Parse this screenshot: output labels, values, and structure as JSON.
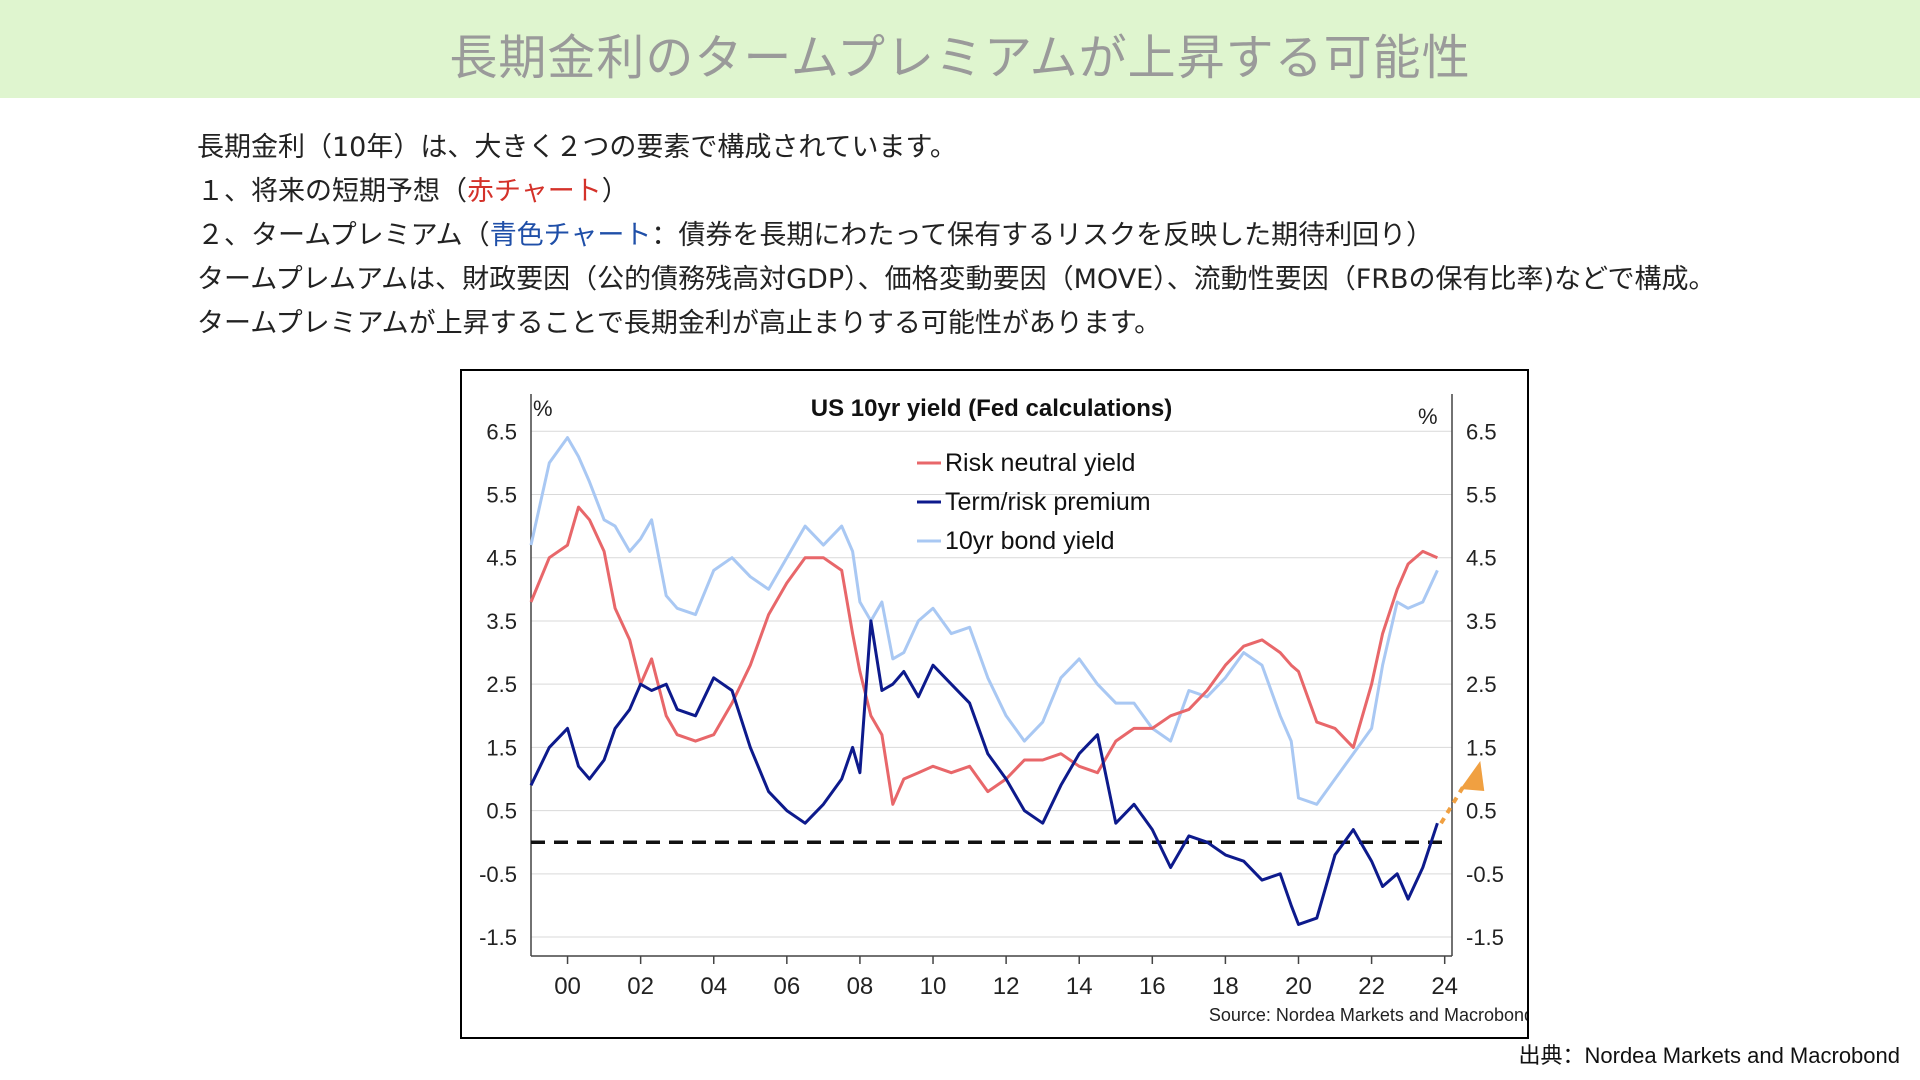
{
  "header": {
    "title": "長期金利のタームプレミアムが上昇する可能性"
  },
  "body": {
    "line1": "長期金利（10年）は、大きく２つの要素で構成されています。",
    "line2_prefix": "１、将来の短期予想（",
    "line2_highlight": "赤チャート",
    "line2_suffix": "）",
    "line3_prefix": "２、タームプレミアム（",
    "line3_highlight": "青色チャート",
    "line3_suffix": "：債券を長期にわたって保有するリスクを反映した期待利回り）",
    "line4": "タームプレムアムは、財政要因（公的債務残高対GDP）、価格変動要因（MOVE）、流動性要因（FRBの保有比率)などで構成。",
    "line5": "タームプレミアムが上昇することで長期金利が高止まりする可能性があります。"
  },
  "footer": {
    "source": "出典：Nordea Markets and Macrobond"
  },
  "colors": {
    "header_bg": "#dff5cf",
    "red_text": "#d4322a",
    "blue_text": "#1f4fa8",
    "risk_neutral": "#e8676a",
    "term_premium": "#0d1a8c",
    "bond_yield": "#a9c8f3",
    "arrow": "#f0a041"
  },
  "chart_data": {
    "type": "line",
    "title": "US 10yr yield (Fed calculations)",
    "source": "Source: Nordea Markets and Macrobond",
    "left_unit": "%",
    "right_unit": "%",
    "ylim": [
      -1.8,
      6.9
    ],
    "yticks": [
      6.5,
      5.5,
      4.5,
      3.5,
      2.5,
      1.5,
      0.5,
      -0.5,
      -1.5
    ],
    "ytick_labels": [
      "6.5",
      "5.5",
      "4.5",
      "3.5",
      "2.5",
      "1.5",
      "0.5",
      "-0.5",
      "-1.5"
    ],
    "xlim": [
      1999.0,
      2024.2
    ],
    "xticks": [
      2000,
      2002,
      2004,
      2006,
      2008,
      2010,
      2012,
      2014,
      2016,
      2018,
      2020,
      2022,
      2024
    ],
    "xtick_labels": [
      "00",
      "02",
      "04",
      "06",
      "08",
      "10",
      "12",
      "14",
      "16",
      "18",
      "20",
      "22",
      "24"
    ],
    "zero_line": 0,
    "legend_position": "top-center",
    "series": [
      {
        "name": "Risk neutral yield",
        "x": [
          1999.0,
          1999.5,
          2000.0,
          2000.3,
          2000.6,
          2001.0,
          2001.3,
          2001.7,
          2002.0,
          2002.3,
          2002.7,
          2003.0,
          2003.5,
          2004.0,
          2004.5,
          2005.0,
          2005.5,
          2006.0,
          2006.5,
          2007.0,
          2007.5,
          2007.8,
          2008.0,
          2008.3,
          2008.6,
          2008.9,
          2009.2,
          2009.6,
          2010.0,
          2010.5,
          2011.0,
          2011.5,
          2012.0,
          2012.5,
          2013.0,
          2013.5,
          2014.0,
          2014.5,
          2015.0,
          2015.5,
          2016.0,
          2016.5,
          2017.0,
          2017.5,
          2018.0,
          2018.5,
          2019.0,
          2019.5,
          2019.8,
          2020.0,
          2020.5,
          2021.0,
          2021.5,
          2022.0,
          2022.3,
          2022.7,
          2023.0,
          2023.4,
          2023.8
        ],
        "values": [
          3.8,
          4.5,
          4.7,
          5.3,
          5.1,
          4.6,
          3.7,
          3.2,
          2.5,
          2.9,
          2.0,
          1.7,
          1.6,
          1.7,
          2.2,
          2.8,
          3.6,
          4.1,
          4.5,
          4.5,
          4.3,
          3.3,
          2.7,
          2.0,
          1.7,
          0.6,
          1.0,
          1.1,
          1.2,
          1.1,
          1.2,
          0.8,
          1.0,
          1.3,
          1.3,
          1.4,
          1.2,
          1.1,
          1.6,
          1.8,
          1.8,
          2.0,
          2.1,
          2.4,
          2.8,
          3.1,
          3.2,
          3.0,
          2.8,
          2.7,
          1.9,
          1.8,
          1.5,
          2.5,
          3.3,
          4.0,
          4.4,
          4.6,
          4.5
        ]
      },
      {
        "name": "Term/risk premium",
        "x": [
          1999.0,
          1999.5,
          2000.0,
          2000.3,
          2000.6,
          2001.0,
          2001.3,
          2001.7,
          2002.0,
          2002.3,
          2002.7,
          2003.0,
          2003.5,
          2004.0,
          2004.5,
          2005.0,
          2005.5,
          2006.0,
          2006.5,
          2007.0,
          2007.5,
          2007.8,
          2008.0,
          2008.3,
          2008.6,
          2008.9,
          2009.2,
          2009.6,
          2010.0,
          2010.5,
          2011.0,
          2011.5,
          2012.0,
          2012.5,
          2013.0,
          2013.5,
          2014.0,
          2014.5,
          2015.0,
          2015.5,
          2016.0,
          2016.5,
          2017.0,
          2017.5,
          2018.0,
          2018.5,
          2019.0,
          2019.5,
          2019.8,
          2020.0,
          2020.5,
          2021.0,
          2021.5,
          2022.0,
          2022.3,
          2022.7,
          2023.0,
          2023.4,
          2023.8
        ],
        "values": [
          0.9,
          1.5,
          1.8,
          1.2,
          1.0,
          1.3,
          1.8,
          2.1,
          2.5,
          2.4,
          2.5,
          2.1,
          2.0,
          2.6,
          2.4,
          1.5,
          0.8,
          0.5,
          0.3,
          0.6,
          1.0,
          1.5,
          1.1,
          3.5,
          2.4,
          2.5,
          2.7,
          2.3,
          2.8,
          2.5,
          2.2,
          1.4,
          1.0,
          0.5,
          0.3,
          0.9,
          1.4,
          1.7,
          0.3,
          0.6,
          0.2,
          -0.4,
          0.1,
          0.0,
          -0.2,
          -0.3,
          -0.6,
          -0.5,
          -1.0,
          -1.3,
          -1.2,
          -0.2,
          0.2,
          -0.3,
          -0.7,
          -0.5,
          -0.9,
          -0.4,
          0.3
        ]
      },
      {
        "name": "10yr bond yield",
        "x": [
          1999.0,
          1999.5,
          2000.0,
          2000.3,
          2000.6,
          2001.0,
          2001.3,
          2001.7,
          2002.0,
          2002.3,
          2002.7,
          2003.0,
          2003.5,
          2004.0,
          2004.5,
          2005.0,
          2005.5,
          2006.0,
          2006.5,
          2007.0,
          2007.5,
          2007.8,
          2008.0,
          2008.3,
          2008.6,
          2008.9,
          2009.2,
          2009.6,
          2010.0,
          2010.5,
          2011.0,
          2011.5,
          2012.0,
          2012.5,
          2013.0,
          2013.5,
          2014.0,
          2014.5,
          2015.0,
          2015.5,
          2016.0,
          2016.5,
          2017.0,
          2017.5,
          2018.0,
          2018.5,
          2019.0,
          2019.5,
          2019.8,
          2020.0,
          2020.5,
          2021.0,
          2021.5,
          2022.0,
          2022.3,
          2022.7,
          2023.0,
          2023.4,
          2023.8
        ],
        "values": [
          4.7,
          6.0,
          6.4,
          6.1,
          5.7,
          5.1,
          5.0,
          4.6,
          4.8,
          5.1,
          3.9,
          3.7,
          3.6,
          4.3,
          4.5,
          4.2,
          4.0,
          4.5,
          5.0,
          4.7,
          5.0,
          4.6,
          3.8,
          3.5,
          3.8,
          2.9,
          3.0,
          3.5,
          3.7,
          3.3,
          3.4,
          2.6,
          2.0,
          1.6,
          1.9,
          2.6,
          2.9,
          2.5,
          2.2,
          2.2,
          1.8,
          1.6,
          2.4,
          2.3,
          2.6,
          3.0,
          2.8,
          2.0,
          1.6,
          0.7,
          0.6,
          1.0,
          1.4,
          1.8,
          2.8,
          3.8,
          3.7,
          3.8,
          4.3
        ]
      }
    ],
    "legend_items": [
      "Risk neutral yield",
      "Term/risk premium",
      "10yr bond yield"
    ]
  }
}
